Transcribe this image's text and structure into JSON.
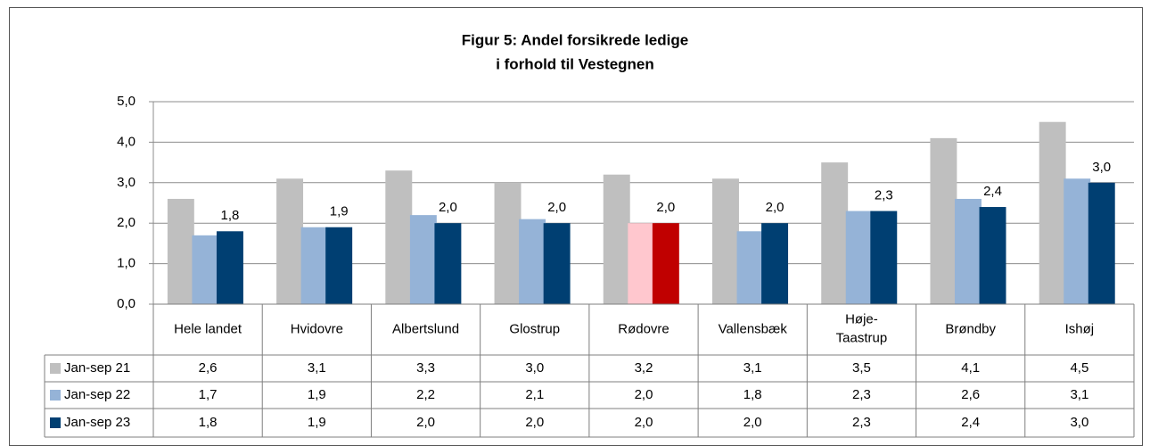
{
  "chart_data": {
    "type": "bar",
    "title": [
      "Figur 5: Andel forsikrede ledige",
      "i forhold til Vestegnen"
    ],
    "categories": [
      "Hele landet",
      "Hvidovre",
      "Albertslund",
      "Glostrup",
      "Rødovre",
      "Vallensbæk",
      "Høje-Taastrup",
      "Brøndby",
      "Ishøj"
    ],
    "highlight_category": "Rødovre",
    "series": [
      {
        "name": "Jan-sep 21",
        "color": "#bfbfbf",
        "highlight_color": "#bfbfbf",
        "values": [
          2.6,
          3.1,
          3.3,
          3.0,
          3.2,
          3.1,
          3.5,
          4.1,
          4.5
        ],
        "value_labels": [
          "2,6",
          "3,1",
          "3,3",
          "3,0",
          "3,2",
          "3,1",
          "3,5",
          "4,1",
          "4,5"
        ],
        "data_labels": false
      },
      {
        "name": "Jan-sep 22",
        "color": "#95b3d7",
        "highlight_color": "#ffc7ce",
        "values": [
          1.7,
          1.9,
          2.2,
          2.1,
          2.0,
          1.8,
          2.3,
          2.6,
          3.1
        ],
        "value_labels": [
          "1,7",
          "1,9",
          "2,2",
          "2,1",
          "2,0",
          "1,8",
          "2,3",
          "2,6",
          "3,1"
        ],
        "data_labels": false
      },
      {
        "name": "Jan-sep 23",
        "color": "#003f72",
        "highlight_color": "#c00000",
        "values": [
          1.8,
          1.9,
          2.0,
          2.0,
          2.0,
          2.0,
          2.3,
          2.4,
          3.0
        ],
        "value_labels": [
          "1,8",
          "1,9",
          "2,0",
          "2,0",
          "2,0",
          "2,0",
          "2,3",
          "2,4",
          "3,0"
        ],
        "data_labels": true
      }
    ],
    "ylim": [
      0,
      5
    ],
    "yticks": [
      {
        "value": 0,
        "label": "0,0"
      },
      {
        "value": 1,
        "label": "1,0"
      },
      {
        "value": 2,
        "label": "2,0"
      },
      {
        "value": 3,
        "label": "3,0"
      },
      {
        "value": 4,
        "label": "4,0"
      },
      {
        "value": 5,
        "label": "5,0"
      }
    ],
    "grid": true,
    "data_table": true
  }
}
